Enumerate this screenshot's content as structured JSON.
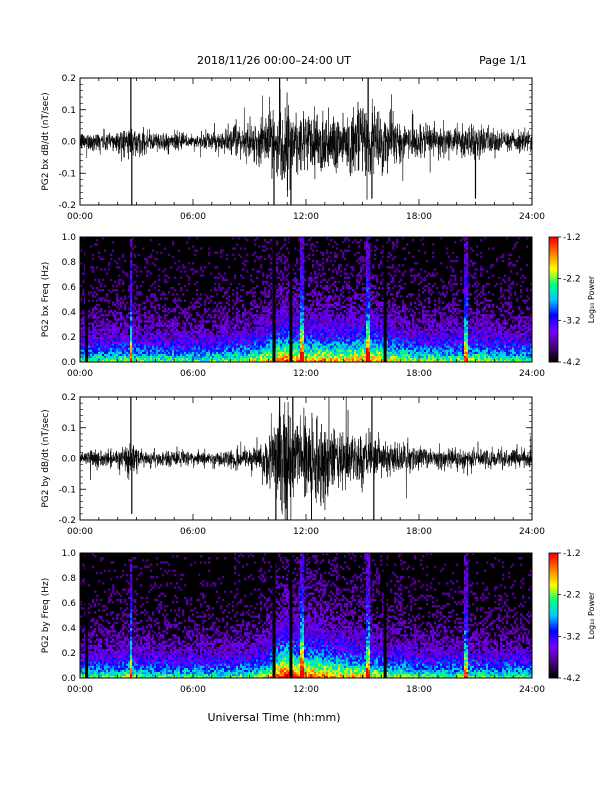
{
  "header": {
    "title": "2018/11/26  00:00–24:00 UT",
    "page_label": "Page 1/1"
  },
  "footer": {
    "xlabel": "Universal Time (hh:mm)"
  },
  "colors": {
    "background": "#ffffff",
    "trace": "#000000",
    "colormap": [
      "#000000",
      "#4b0082",
      "#7a00ff",
      "#0000ff",
      "#00c8ff",
      "#00ff80",
      "#ffff00",
      "#ff8000",
      "#ff0000"
    ]
  },
  "chart_data": [
    {
      "type": "line",
      "ylabel": "PG2 bx dB/dt (nT/sec)",
      "xlim_hours": [
        0,
        24
      ],
      "ylim": [
        -0.2,
        0.2
      ],
      "yticks": [
        "-0.2",
        "-0.1",
        "0.0",
        "0.1",
        "0.2"
      ],
      "xticks": [
        "00:00",
        "06:00",
        "12:00",
        "18:00",
        "24:00"
      ],
      "series_description": "High-cadence dB/dt trace",
      "envelope": {
        "hours": [
          0,
          1,
          2,
          2.7,
          3,
          4,
          5,
          6,
          7,
          8,
          9,
          9.8,
          10.5,
          11,
          11.5,
          12,
          12.5,
          13,
          14,
          15,
          16,
          17,
          18,
          19,
          20,
          21,
          22,
          23,
          24
        ],
        "amplitude": [
          0.03,
          0.035,
          0.04,
          0.05,
          0.04,
          0.035,
          0.03,
          0.025,
          0.03,
          0.045,
          0.06,
          0.08,
          0.12,
          0.14,
          0.12,
          0.1,
          0.12,
          0.11,
          0.1,
          0.12,
          0.1,
          0.07,
          0.05,
          0.05,
          0.05,
          0.06,
          0.04,
          0.035,
          0.035
        ]
      },
      "spikes": [
        {
          "hour": 2.7,
          "value": 0.2
        },
        {
          "hour": 2.75,
          "value": -0.2
        },
        {
          "hour": 10.3,
          "value": -0.2
        },
        {
          "hour": 10.6,
          "value": 0.2
        },
        {
          "hour": 11.2,
          "value": -0.2
        },
        {
          "hour": 15.3,
          "value": 0.2
        },
        {
          "hour": 15.5,
          "value": -0.18
        },
        {
          "hour": 21.0,
          "value": -0.18
        }
      ]
    },
    {
      "type": "heatmap",
      "ylabel": "PG2 bx Freq (Hz)",
      "xlim_hours": [
        0,
        24
      ],
      "ylim": [
        0.0,
        1.0
      ],
      "yticks": [
        "0.0",
        "0.2",
        "0.4",
        "0.6",
        "0.8",
        "1.0"
      ],
      "xticks": [
        "00:00",
        "06:00",
        "12:00",
        "18:00",
        "24:00"
      ],
      "colorbar": {
        "label": "Log₁₀ Power",
        "range": [
          -4.2,
          -1.2
        ],
        "ticks": [
          "-1.2",
          "-2.2",
          "-3.2",
          "-4.2"
        ]
      },
      "gaps_hours": [
        0.35,
        10.3,
        11.2,
        16.2
      ],
      "bright_columns_hours": [
        2.7,
        11.8,
        15.3,
        20.5
      ]
    },
    {
      "type": "line",
      "ylabel": "PG2 by dB/dt (nT/sec)",
      "xlim_hours": [
        0,
        24
      ],
      "ylim": [
        -0.2,
        0.2
      ],
      "yticks": [
        "-0.2",
        "-0.1",
        "0.0",
        "0.1",
        "0.2"
      ],
      "xticks": [
        "00:00",
        "06:00",
        "12:00",
        "18:00",
        "24:00"
      ],
      "series_description": "High-cadence dB/dt trace",
      "envelope": {
        "hours": [
          0,
          1,
          2,
          2.7,
          3,
          4,
          5,
          6,
          7,
          8,
          9,
          9.8,
          10.5,
          11,
          11.5,
          12,
          12.5,
          13,
          14,
          15,
          16,
          17,
          18,
          19,
          20,
          21,
          22,
          23,
          24
        ],
        "amplitude": [
          0.025,
          0.03,
          0.03,
          0.06,
          0.035,
          0.03,
          0.025,
          0.025,
          0.025,
          0.03,
          0.04,
          0.06,
          0.15,
          0.2,
          0.15,
          0.14,
          0.15,
          0.13,
          0.1,
          0.1,
          0.07,
          0.05,
          0.04,
          0.035,
          0.035,
          0.04,
          0.03,
          0.03,
          0.03
        ]
      },
      "spikes": [
        {
          "hour": 2.7,
          "value": 0.2
        },
        {
          "hour": 2.75,
          "value": -0.18
        },
        {
          "hour": 10.4,
          "value": -0.2
        },
        {
          "hour": 10.6,
          "value": 0.2
        },
        {
          "hour": 11.0,
          "value": -0.2
        },
        {
          "hour": 11.3,
          "value": 0.2
        },
        {
          "hour": 15.5,
          "value": 0.2
        },
        {
          "hour": 15.6,
          "value": -0.2
        }
      ]
    },
    {
      "type": "heatmap",
      "ylabel": "PG2 by Freq (Hz)",
      "xlim_hours": [
        0,
        24
      ],
      "ylim": [
        0.0,
        1.0
      ],
      "yticks": [
        "0.0",
        "0.2",
        "0.4",
        "0.6",
        "0.8",
        "1.0"
      ],
      "xticks": [
        "00:00",
        "06:00",
        "12:00",
        "18:00",
        "24:00"
      ],
      "colorbar": {
        "label": "Log₁₀ Power",
        "range": [
          -4.2,
          -1.2
        ],
        "ticks": [
          "-1.2",
          "-2.2",
          "-3.2",
          "-4.2"
        ]
      },
      "gaps_hours": [
        0.35,
        10.3,
        11.2,
        16.2
      ],
      "bright_columns_hours": [
        2.7,
        11.8,
        15.3,
        20.5
      ]
    }
  ]
}
